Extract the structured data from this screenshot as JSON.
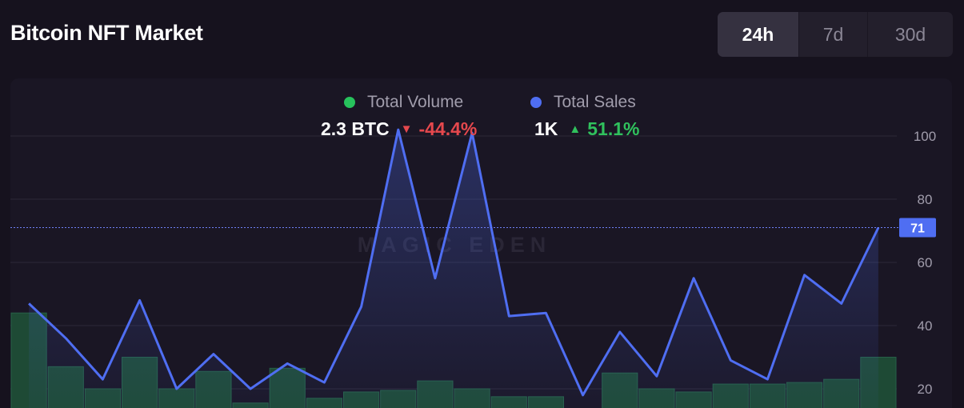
{
  "header": {
    "title": "Bitcoin NFT Market",
    "tabs": [
      {
        "label": "24h",
        "active": true
      },
      {
        "label": "7d",
        "active": false
      },
      {
        "label": "30d",
        "active": false
      }
    ]
  },
  "legend": {
    "volume": {
      "label": "Total Volume",
      "value": "2.3 BTC",
      "change": "-44.4%",
      "direction": "down",
      "color": "#27c25c"
    },
    "sales": {
      "label": "Total Sales",
      "value": "1K",
      "change": "51.1%",
      "direction": "up",
      "color": "#4f6ef2"
    }
  },
  "watermark": "MAGIC EDEN",
  "chart_data": {
    "type": "line",
    "y_ticks": [
      "100",
      "80",
      "60",
      "40",
      "20"
    ],
    "ylim": [
      19,
      114
    ],
    "current_value": "71",
    "series": [
      {
        "name": "Total Sales",
        "type": "line",
        "values": [
          47,
          36,
          23,
          48,
          20,
          31,
          20,
          28,
          22,
          46,
          102,
          55,
          101,
          43,
          44,
          18,
          38,
          24,
          55,
          29,
          23,
          56,
          47,
          71
        ]
      },
      {
        "name": "Total Volume",
        "type": "bar",
        "values": [
          44,
          27,
          20,
          30,
          20,
          25.5,
          15.5,
          26.5,
          17,
          19,
          19.5,
          22.5,
          20,
          17.5,
          17.5,
          13,
          25,
          20,
          19,
          21.5,
          21.5,
          22,
          23,
          30
        ]
      }
    ]
  }
}
